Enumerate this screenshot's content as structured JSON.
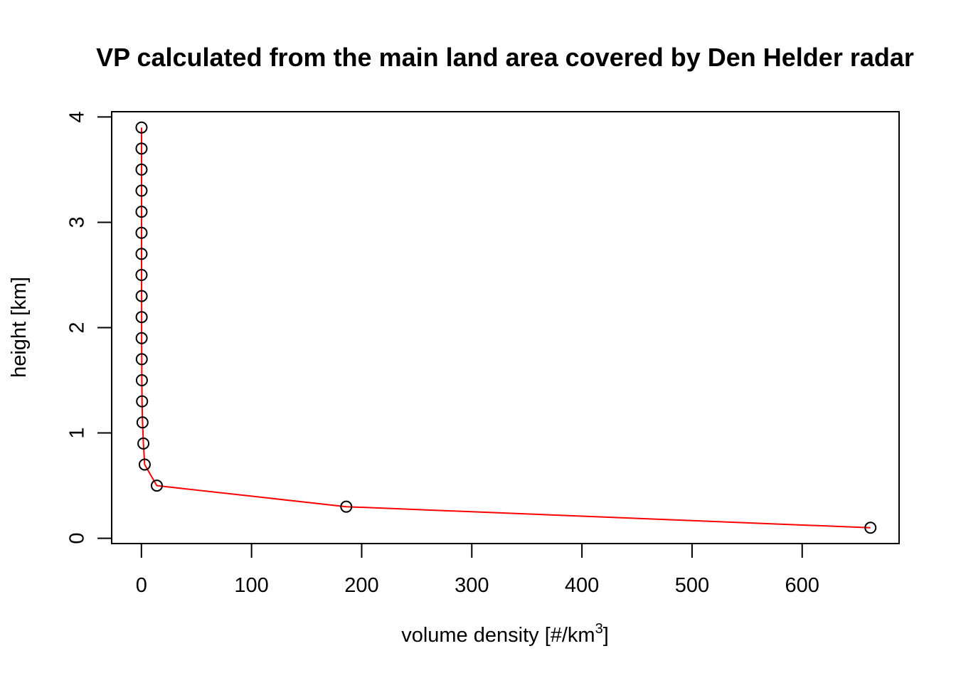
{
  "chart_data": {
    "type": "line",
    "title": "VP calculated from the main land area covered by Den Helder radar",
    "xlabel": {
      "main": "volume density [#/km",
      "superscript": "3",
      "close": "]"
    },
    "ylabel": "height [km]",
    "xlim": [
      -27,
      688
    ],
    "ylim": [
      -0.05,
      4.05
    ],
    "x_ticks": [
      0,
      100,
      200,
      300,
      400,
      500,
      600
    ],
    "x_tick_labels": [
      "0",
      "100",
      "200",
      "300",
      "400",
      "500",
      "600"
    ],
    "y_ticks": [
      0,
      1,
      2,
      3,
      4
    ],
    "y_tick_labels": [
      "0",
      "1",
      "2",
      "3",
      "4"
    ],
    "grid": false,
    "series": [
      {
        "line_color": "#ff0000",
        "marker": "open-circle",
        "marker_color": "#000000",
        "x": [
          662,
          186,
          14,
          3,
          1.8,
          1,
          0.6,
          0.4,
          0.3,
          0.2,
          0.2,
          0.2,
          0.1,
          0.1,
          0.1,
          0.1,
          0.1,
          0.1,
          0.1,
          0.1
        ],
        "y": [
          0.1,
          0.3,
          0.5,
          0.7,
          0.9,
          1.1,
          1.3,
          1.5,
          1.7,
          1.9,
          2.1,
          2.3,
          2.5,
          2.7,
          2.9,
          3.1,
          3.3,
          3.5,
          3.7,
          3.9
        ]
      }
    ]
  }
}
